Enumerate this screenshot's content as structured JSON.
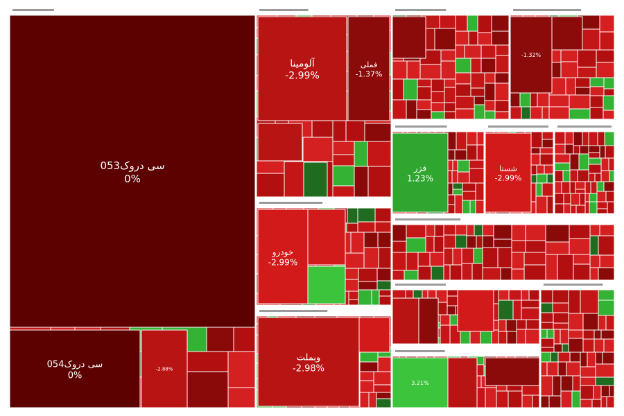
{
  "chart_data": {
    "type": "treemap",
    "title": "",
    "palette": {
      "deep_red": "#5c0000",
      "dark_red": "#8b0a0a",
      "red": "#b81414",
      "bright_red": "#d31a1a",
      "light_red": "#e23c3c",
      "green": "#2fa62f",
      "bright_green": "#3cc43c",
      "dark_green": "#1f6b1f",
      "sector_header": "#ffffff"
    },
    "sectors": [
      {
        "id": "s1",
        "tiles": [
          {
            "name": "سی‌ دروک053",
            "change": "0%",
            "value": 30,
            "color": "deep_red"
          },
          {
            "name": "سی‌ دروک054",
            "change": "0%",
            "value": 5,
            "color": "deep_red"
          },
          {
            "name": "",
            "change": "-2.88%",
            "value": 1.5,
            "color": "red"
          }
        ]
      },
      {
        "id": "s2",
        "tiles": [
          {
            "name": "آلومینا",
            "change": "-2.99%",
            "value": 6,
            "color": "red"
          },
          {
            "name": "فملی",
            "change": "-1.37%",
            "value": 3.5,
            "color": "dark_red"
          }
        ]
      },
      {
        "id": "s3",
        "tiles": [
          {
            "name": "خودرو",
            "change": "-2.99%",
            "value": 4,
            "color": "bright_red"
          }
        ]
      },
      {
        "id": "s4",
        "tiles": [
          {
            "name": "وبملت",
            "change": "-2.98%",
            "value": 5,
            "color": "red"
          }
        ]
      },
      {
        "id": "s5",
        "tiles": [
          {
            "name": "فزر",
            "change": "1.23%",
            "value": 3.5,
            "color": "green"
          }
        ]
      },
      {
        "id": "s6",
        "tiles": [
          {
            "name": "شستا",
            "change": "-2.99%",
            "value": 3.5,
            "color": "bright_red"
          }
        ]
      },
      {
        "id": "s7",
        "tiles": [
          {
            "name": "",
            "change": "-1.32%",
            "value": 2.5,
            "color": "dark_red"
          }
        ]
      },
      {
        "id": "s8",
        "tiles": [
          {
            "name": "",
            "change": "3.21%",
            "value": 2.5,
            "color": "bright_green"
          }
        ]
      }
    ]
  }
}
